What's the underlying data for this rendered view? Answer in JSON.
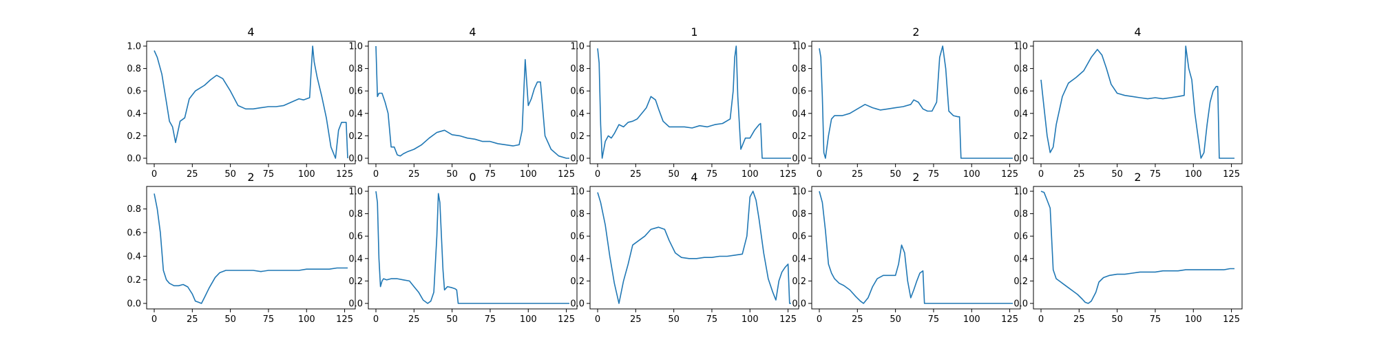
{
  "figure": {
    "line_color": "#1f77b4",
    "rows": 2,
    "cols": 5
  },
  "chart_data": [
    {
      "type": "line",
      "title": "4",
      "xlim": [
        0,
        127
      ],
      "ylim": [
        0,
        1.0
      ],
      "xticks": [
        0,
        25,
        50,
        75,
        100,
        125
      ],
      "yticks": [
        0.0,
        0.2,
        0.4,
        0.6,
        0.8,
        1.0
      ],
      "series": [
        {
          "x": [
            0,
            2,
            5,
            8,
            10,
            12,
            14,
            17,
            20,
            23,
            27,
            33,
            37,
            41,
            45,
            50,
            55,
            60,
            65,
            70,
            75,
            80,
            85,
            90,
            95,
            98,
            102,
            104,
            105,
            107,
            110,
            113,
            116,
            119,
            121,
            123,
            126,
            127
          ],
          "y": [
            0.96,
            0.9,
            0.75,
            0.5,
            0.33,
            0.28,
            0.14,
            0.33,
            0.36,
            0.53,
            0.6,
            0.65,
            0.7,
            0.74,
            0.71,
            0.6,
            0.47,
            0.44,
            0.44,
            0.45,
            0.46,
            0.46,
            0.47,
            0.5,
            0.53,
            0.52,
            0.54,
            1.0,
            0.86,
            0.72,
            0.55,
            0.36,
            0.1,
            0.0,
            0.25,
            0.32,
            0.32,
            0.0
          ]
        }
      ]
    },
    {
      "type": "line",
      "title": "4",
      "xlim": [
        0,
        127
      ],
      "ylim": [
        0,
        1.0
      ],
      "xticks": [
        0,
        25,
        50,
        75,
        100,
        125
      ],
      "yticks": [
        0.0,
        0.2,
        0.4,
        0.6,
        0.8,
        1.0
      ],
      "series": [
        {
          "x": [
            0,
            1,
            2,
            4,
            6,
            8,
            10,
            12,
            14,
            16,
            18,
            21,
            25,
            30,
            35,
            40,
            45,
            50,
            55,
            60,
            65,
            70,
            75,
            80,
            85,
            90,
            94,
            96,
            98,
            100,
            102,
            104,
            106,
            108,
            111,
            115,
            120,
            125,
            127
          ],
          "y": [
            1.0,
            0.55,
            0.58,
            0.58,
            0.5,
            0.4,
            0.1,
            0.1,
            0.03,
            0.02,
            0.04,
            0.06,
            0.08,
            0.12,
            0.18,
            0.23,
            0.25,
            0.21,
            0.2,
            0.18,
            0.17,
            0.15,
            0.15,
            0.13,
            0.12,
            0.11,
            0.12,
            0.25,
            0.88,
            0.47,
            0.53,
            0.62,
            0.68,
            0.68,
            0.2,
            0.08,
            0.02,
            0.0,
            0.0
          ]
        }
      ]
    },
    {
      "type": "line",
      "title": "1",
      "xlim": [
        0,
        127
      ],
      "ylim": [
        0,
        1.0
      ],
      "xticks": [
        0,
        25,
        50,
        75,
        100,
        125
      ],
      "yticks": [
        0.0,
        0.2,
        0.4,
        0.6,
        0.8,
        1.0
      ],
      "series": [
        {
          "x": [
            0,
            1,
            2,
            3,
            5,
            7,
            9,
            11,
            14,
            17,
            20,
            23,
            26,
            29,
            32,
            35,
            38,
            40,
            43,
            47,
            52,
            57,
            62,
            67,
            72,
            77,
            82,
            87,
            89,
            90,
            91,
            92,
            94,
            97,
            100,
            103,
            106,
            107,
            108,
            112,
            118,
            124,
            127
          ],
          "y": [
            0.98,
            0.85,
            0.3,
            0.0,
            0.15,
            0.2,
            0.18,
            0.22,
            0.3,
            0.28,
            0.32,
            0.33,
            0.35,
            0.4,
            0.45,
            0.55,
            0.52,
            0.44,
            0.33,
            0.28,
            0.28,
            0.28,
            0.27,
            0.29,
            0.28,
            0.3,
            0.31,
            0.35,
            0.6,
            0.9,
            1.0,
            0.55,
            0.08,
            0.18,
            0.18,
            0.25,
            0.3,
            0.31,
            0.0,
            0.0,
            0.0,
            0.0,
            0.0
          ]
        }
      ]
    },
    {
      "type": "line",
      "title": "2",
      "xlim": [
        0,
        127
      ],
      "ylim": [
        0,
        1.0
      ],
      "xticks": [
        0,
        25,
        50,
        75,
        100,
        125
      ],
      "yticks": [
        0.0,
        0.2,
        0.4,
        0.6,
        0.8,
        1.0
      ],
      "series": [
        {
          "x": [
            0,
            1,
            2,
            3,
            4,
            6,
            8,
            10,
            15,
            20,
            25,
            30,
            35,
            40,
            45,
            50,
            55,
            60,
            62,
            65,
            68,
            71,
            74,
            77,
            79,
            81,
            83,
            85,
            88,
            91,
            92,
            93,
            100,
            110,
            120,
            127
          ],
          "y": [
            0.98,
            0.9,
            0.55,
            0.05,
            0.0,
            0.2,
            0.35,
            0.38,
            0.38,
            0.4,
            0.44,
            0.48,
            0.45,
            0.43,
            0.44,
            0.45,
            0.46,
            0.48,
            0.52,
            0.5,
            0.44,
            0.42,
            0.42,
            0.5,
            0.9,
            1.0,
            0.8,
            0.42,
            0.38,
            0.37,
            0.37,
            0.0,
            0.0,
            0.0,
            0.0,
            0.0
          ]
        }
      ]
    },
    {
      "type": "line",
      "title": "4",
      "xlim": [
        0,
        127
      ],
      "ylim": [
        0,
        1.0
      ],
      "xticks": [
        0,
        25,
        50,
        75,
        100,
        125
      ],
      "yticks": [
        0.0,
        0.2,
        0.4,
        0.6,
        0.8,
        1.0
      ],
      "series": [
        {
          "x": [
            0,
            2,
            4,
            6,
            8,
            10,
            14,
            18,
            23,
            28,
            33,
            37,
            40,
            43,
            46,
            50,
            55,
            60,
            65,
            70,
            75,
            80,
            85,
            90,
            94,
            95,
            97,
            99,
            101,
            103,
            105,
            107,
            109,
            111,
            113,
            115,
            116,
            117,
            120,
            125,
            127
          ],
          "y": [
            0.7,
            0.45,
            0.2,
            0.05,
            0.1,
            0.3,
            0.55,
            0.67,
            0.72,
            0.78,
            0.9,
            0.97,
            0.92,
            0.8,
            0.66,
            0.58,
            0.56,
            0.55,
            0.54,
            0.53,
            0.54,
            0.53,
            0.54,
            0.55,
            0.56,
            1.0,
            0.8,
            0.7,
            0.4,
            0.2,
            0.0,
            0.05,
            0.3,
            0.5,
            0.6,
            0.64,
            0.64,
            0.0,
            0.0,
            0.0,
            0.0
          ]
        }
      ]
    },
    {
      "type": "line",
      "title": "2",
      "xlim": [
        0,
        127
      ],
      "ylim": [
        0,
        0.95
      ],
      "xticks": [
        0,
        25,
        50,
        75,
        100,
        125
      ],
      "yticks": [
        0.0,
        0.2,
        0.4,
        0.6,
        0.8
      ],
      "series": [
        {
          "x": [
            0,
            2,
            4,
            6,
            8,
            10,
            13,
            16,
            19,
            22,
            25,
            27,
            29,
            31,
            33,
            36,
            40,
            43,
            47,
            50,
            55,
            60,
            65,
            70,
            75,
            80,
            85,
            90,
            95,
            100,
            105,
            110,
            115,
            120,
            125,
            127
          ],
          "y": [
            0.93,
            0.8,
            0.6,
            0.28,
            0.2,
            0.17,
            0.15,
            0.15,
            0.16,
            0.14,
            0.08,
            0.02,
            0.01,
            0.0,
            0.05,
            0.13,
            0.22,
            0.26,
            0.28,
            0.28,
            0.28,
            0.28,
            0.28,
            0.27,
            0.28,
            0.28,
            0.28,
            0.28,
            0.28,
            0.29,
            0.29,
            0.29,
            0.29,
            0.3,
            0.3,
            0.3
          ]
        }
      ]
    },
    {
      "type": "line",
      "title": "0",
      "xlim": [
        0,
        127
      ],
      "ylim": [
        0,
        1.0
      ],
      "xticks": [
        0,
        25,
        50,
        75,
        100,
        125
      ],
      "yticks": [
        0.0,
        0.2,
        0.4,
        0.6,
        0.8,
        1.0
      ],
      "series": [
        {
          "x": [
            0,
            1,
            2,
            3,
            4,
            5,
            7,
            10,
            14,
            18,
            22,
            25,
            28,
            31,
            34,
            36,
            38,
            40,
            41,
            42,
            44,
            45,
            47,
            50,
            52,
            53,
            54,
            60,
            70,
            80,
            90,
            100,
            110,
            120,
            127
          ],
          "y": [
            1.0,
            0.9,
            0.4,
            0.15,
            0.2,
            0.22,
            0.21,
            0.22,
            0.22,
            0.21,
            0.2,
            0.15,
            0.1,
            0.03,
            0.0,
            0.02,
            0.1,
            0.6,
            0.98,
            0.9,
            0.3,
            0.12,
            0.15,
            0.14,
            0.13,
            0.12,
            0.0,
            0.0,
            0.0,
            0.0,
            0.0,
            0.0,
            0.0,
            0.0,
            0.0
          ]
        }
      ]
    },
    {
      "type": "line",
      "title": "4",
      "xlim": [
        0,
        127
      ],
      "ylim": [
        0,
        1.0
      ],
      "xticks": [
        0,
        25,
        50,
        75,
        100,
        125
      ],
      "yticks": [
        0.0,
        0.2,
        0.4,
        0.6,
        0.8,
        1.0
      ],
      "series": [
        {
          "x": [
            0,
            2,
            5,
            8,
            11,
            14,
            17,
            20,
            23,
            27,
            31,
            35,
            40,
            44,
            47,
            51,
            55,
            60,
            65,
            70,
            75,
            80,
            85,
            90,
            95,
            98,
            100,
            102,
            104,
            106,
            109,
            112,
            115,
            117,
            119,
            121,
            123,
            125,
            126,
            127
          ],
          "y": [
            0.99,
            0.9,
            0.7,
            0.42,
            0.18,
            0.0,
            0.2,
            0.35,
            0.52,
            0.56,
            0.6,
            0.66,
            0.68,
            0.66,
            0.56,
            0.45,
            0.41,
            0.4,
            0.4,
            0.41,
            0.41,
            0.42,
            0.42,
            0.43,
            0.44,
            0.6,
            0.95,
            1.0,
            0.92,
            0.75,
            0.45,
            0.22,
            0.1,
            0.03,
            0.2,
            0.28,
            0.32,
            0.35,
            0.0,
            0.0
          ]
        }
      ]
    },
    {
      "type": "line",
      "title": "2",
      "xlim": [
        0,
        127
      ],
      "ylim": [
        0,
        1.0
      ],
      "xticks": [
        0,
        25,
        50,
        75,
        100,
        125
      ],
      "yticks": [
        0.0,
        0.2,
        0.4,
        0.6,
        0.8,
        1.0
      ],
      "series": [
        {
          "x": [
            0,
            2,
            4,
            6,
            8,
            10,
            13,
            16,
            20,
            24,
            27,
            29,
            32,
            35,
            38,
            42,
            46,
            50,
            52,
            54,
            56,
            58,
            60,
            62,
            64,
            66,
            68,
            69,
            70,
            80,
            90,
            100,
            110,
            120,
            127
          ],
          "y": [
            1.0,
            0.9,
            0.65,
            0.35,
            0.27,
            0.22,
            0.18,
            0.16,
            0.12,
            0.06,
            0.02,
            0.0,
            0.05,
            0.15,
            0.22,
            0.25,
            0.25,
            0.25,
            0.35,
            0.52,
            0.45,
            0.2,
            0.05,
            0.12,
            0.2,
            0.27,
            0.29,
            0.0,
            0.0,
            0.0,
            0.0,
            0.0,
            0.0,
            0.0,
            0.0
          ]
        }
      ]
    },
    {
      "type": "line",
      "title": "2",
      "xlim": [
        0,
        127
      ],
      "ylim": [
        0,
        1.0
      ],
      "xticks": [
        0,
        25,
        50,
        75,
        100,
        125
      ],
      "yticks": [
        0.0,
        0.2,
        0.4,
        0.6,
        0.8,
        1.0
      ],
      "series": [
        {
          "x": [
            0,
            2,
            4,
            6,
            8,
            10,
            12,
            15,
            18,
            21,
            24,
            27,
            29,
            31,
            33,
            36,
            38,
            41,
            45,
            50,
            55,
            60,
            65,
            70,
            75,
            80,
            85,
            90,
            95,
            100,
            105,
            110,
            115,
            120,
            124,
            127
          ],
          "y": [
            1.0,
            0.99,
            0.92,
            0.85,
            0.3,
            0.22,
            0.2,
            0.17,
            0.14,
            0.11,
            0.08,
            0.04,
            0.01,
            0.0,
            0.02,
            0.1,
            0.19,
            0.23,
            0.25,
            0.26,
            0.26,
            0.27,
            0.28,
            0.28,
            0.28,
            0.29,
            0.29,
            0.29,
            0.3,
            0.3,
            0.3,
            0.3,
            0.3,
            0.3,
            0.31,
            0.31
          ]
        }
      ]
    }
  ]
}
